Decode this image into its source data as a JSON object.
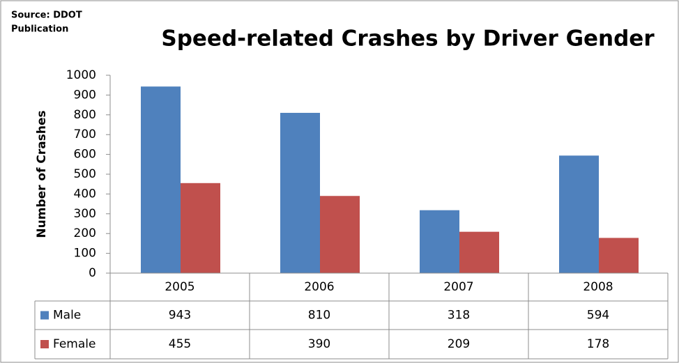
{
  "chart_data": {
    "type": "bar",
    "title": "Speed-related Crashes by Driver Gender",
    "source": [
      "Source: DDOT",
      "Publication"
    ],
    "y_label": "Number of Crashes",
    "categories": [
      "2005",
      "2006",
      "2007",
      "2008"
    ],
    "series": [
      {
        "name": "Male",
        "color": "#4f81bd",
        "values": [
          943,
          810,
          318,
          594
        ]
      },
      {
        "name": "Female",
        "color": "#c0504d",
        "values": [
          455,
          390,
          209,
          178
        ]
      }
    ],
    "ylim": [
      0,
      1000
    ],
    "yticks": [
      0,
      100,
      200,
      300,
      400,
      500,
      600,
      700,
      800,
      900,
      1000
    ],
    "grid": false,
    "legend": "data-table"
  }
}
